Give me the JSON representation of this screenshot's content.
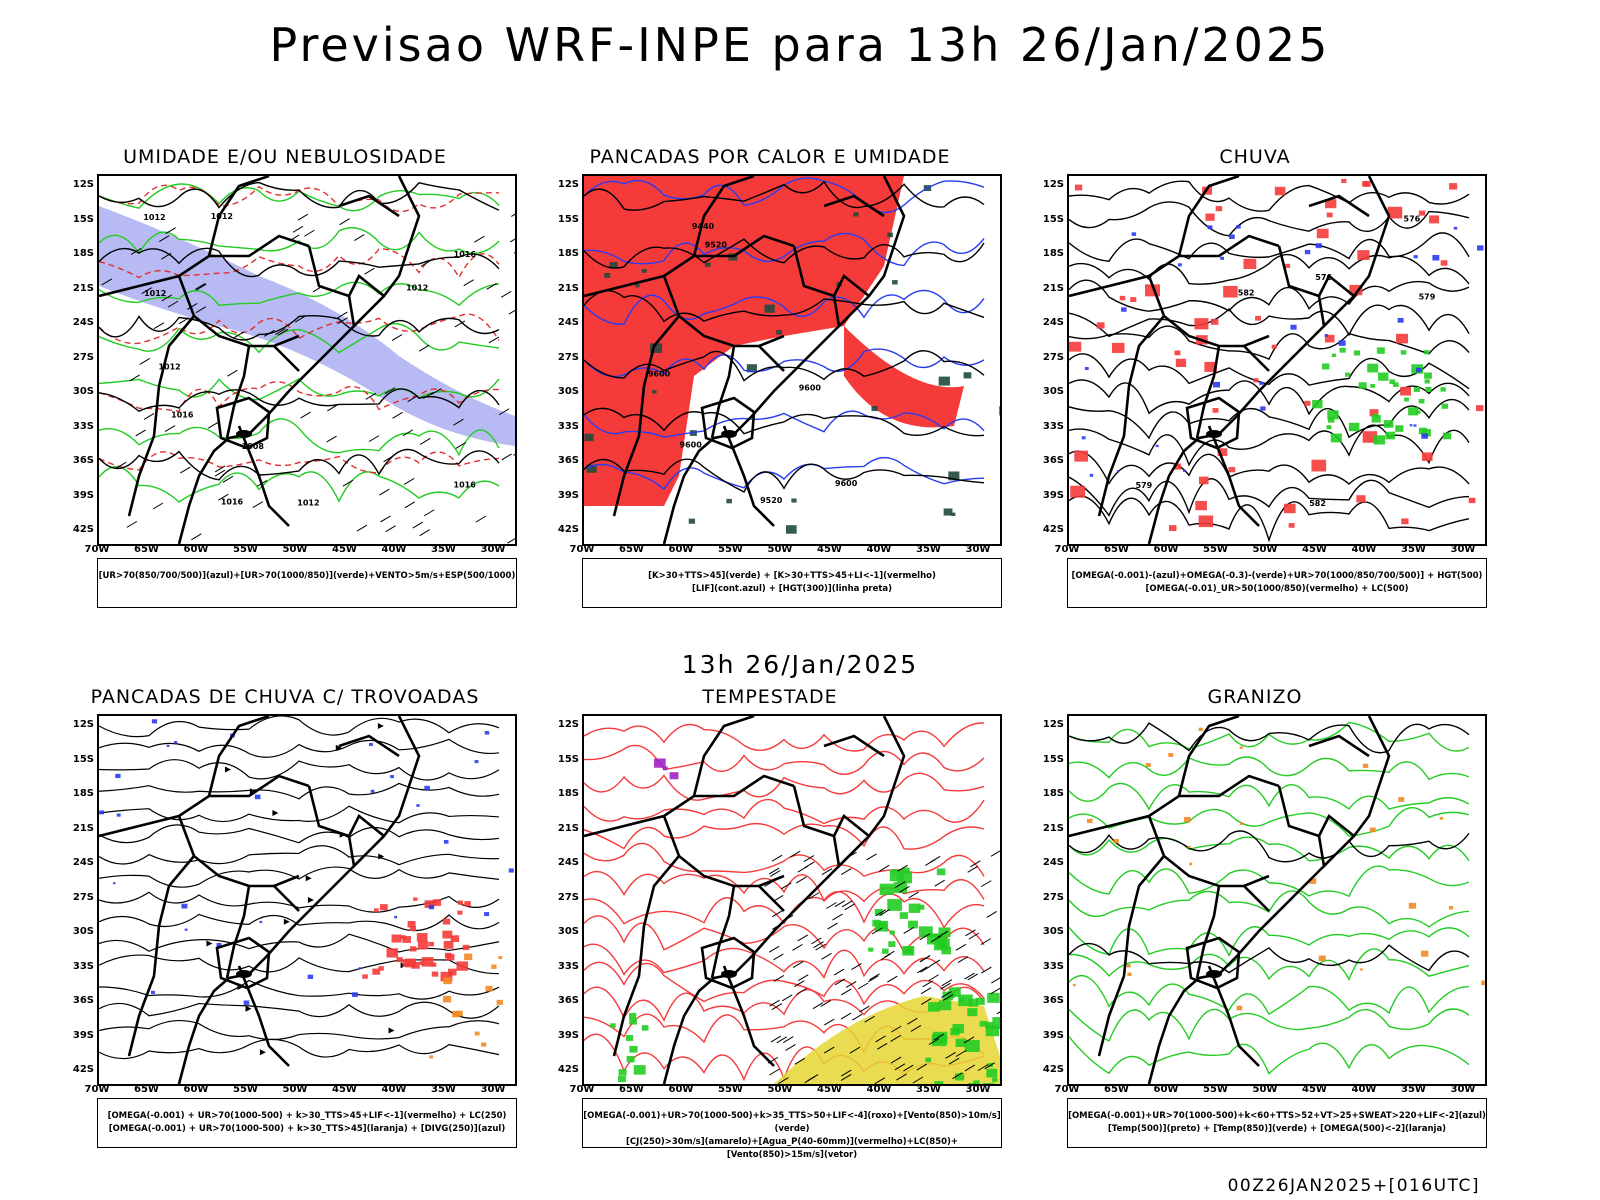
{
  "main_title": "Previsao WRF-INPE  para 13h 26/Jan/2025",
  "mid_title": "13h 26/Jan/2025",
  "footer": "00Z26JAN2025+[016UTC]",
  "lat_labels": [
    "12S",
    "15S",
    "18S",
    "21S",
    "24S",
    "27S",
    "30S",
    "33S",
    "36S",
    "39S",
    "42S"
  ],
  "lon_labels": [
    "70W",
    "65W",
    "60W",
    "55W",
    "50W",
    "45W",
    "40W",
    "35W",
    "30W"
  ],
  "panels": [
    {
      "title": "UMIDADE E/OU NEBULOSIDADE",
      "legend": [
        "[UR>70(850/700/500)](azul)+[UR>70(1000/850)](verde)+VENTO>5m/s+ESP(500/1000)"
      ]
    },
    {
      "title": "PANCADAS POR CALOR E UMIDADE",
      "legend": [
        "[K>30+TTS>45](verde) + [K>30+TTS>45+LI<-1](vermelho)",
        "[LIF](cont.azul) + [HGT(300)](linha preta)"
      ]
    },
    {
      "title": "CHUVA",
      "legend": [
        "[OMEGA(-0.001)-(azul)+OMEGA(-0.3)-(verde)+UR>70(1000/850/700/500)] + HGT(500)",
        "[OMEGA(-0.01)_UR>50(1000/850)(vermelho) + LC(500)"
      ]
    },
    {
      "title": "PANCADAS DE CHUVA C/ TROVOADAS",
      "legend": [
        "[OMEGA(-0.001) + UR>70(1000-500) + k>30_TTS>45+LIF<-1](vermelho) + LC(250)",
        "[OMEGA(-0.001) + UR>70(1000-500) + k>30_TTS>45](laranja) + [DIVG(250)](azul)"
      ]
    },
    {
      "title": "TEMPESTADE",
      "legend": [
        "[OMEGA(-0.001)+UR>70(1000-500)+k>35_TTS>50+LIF<-4](roxo)+[Vento(850)>10m/s](verde)",
        "[CJ(250)>30m/s](amarelo)+[Agua_P(40-60mm)](vermelho)+LC(850)+[Vento(850)>15m/s](vetor)"
      ]
    },
    {
      "title": "GRANIZO",
      "legend": [
        "[OMEGA(-0.001)+UR>70(1000-500)+k<60+TTS>52+VT>25+SWEAT>220+LIF<-2](azul)",
        "[Temp(500)](preto) + [Temp(850)](verde) + [OMEGA(500)<-2](laranja)"
      ]
    }
  ],
  "contour_labels": {
    "p1": [
      "1012",
      "1012",
      "1012",
      "1008",
      "1012",
      "1016",
      "1016",
      "1016",
      "1012",
      "1016",
      "1012"
    ],
    "p2": [
      "9600",
      "9600",
      "9600",
      "9600",
      "9520",
      "9440",
      "9520"
    ],
    "p3": [
      "582",
      "582",
      "579",
      "576",
      "579",
      "576"
    ]
  },
  "colors": {
    "humid_blue": "#9a9cf0",
    "humid_green": "#22cc22",
    "storm_red": "#f53a3a",
    "dark_green": "#1f4a3c",
    "lif_blue": "#2a3cf0",
    "orange": "#f08a22",
    "purple": "#a020c8",
    "yellow": "#e6d632"
  }
}
